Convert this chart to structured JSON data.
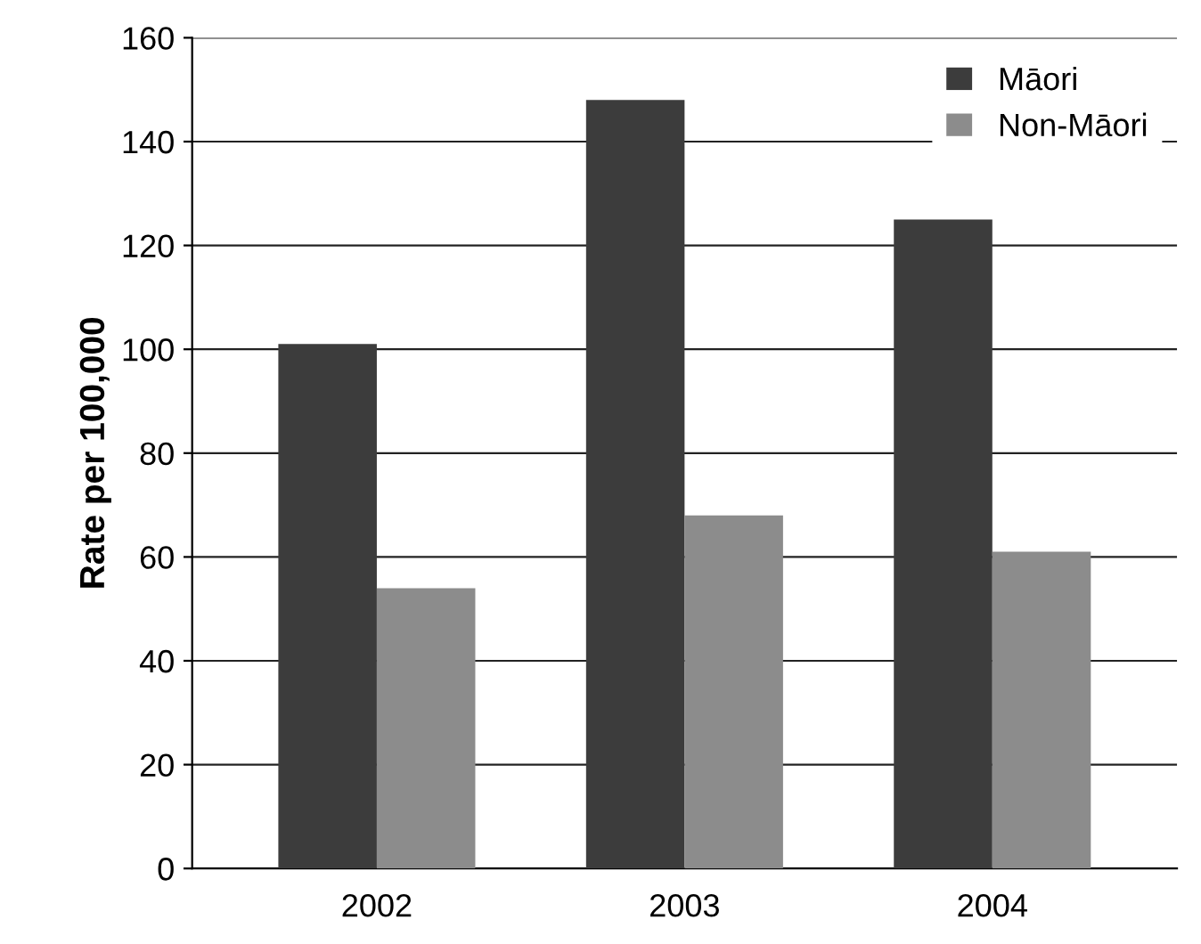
{
  "chart_data": {
    "type": "bar",
    "ylabel": "Rate per 100,000",
    "categories": [
      "2002",
      "2003",
      "2004"
    ],
    "series": [
      {
        "name": "Māori",
        "color": "#3c3c3c",
        "values": [
          101,
          148,
          125
        ]
      },
      {
        "name": "Non-Māori",
        "color": "#8c8c8c",
        "values": [
          54,
          68,
          61
        ]
      }
    ],
    "ylim": [
      0,
      160
    ],
    "yticks": [
      0,
      20,
      40,
      60,
      80,
      100,
      120,
      140,
      160
    ],
    "grid": "y",
    "legend": "top right"
  }
}
